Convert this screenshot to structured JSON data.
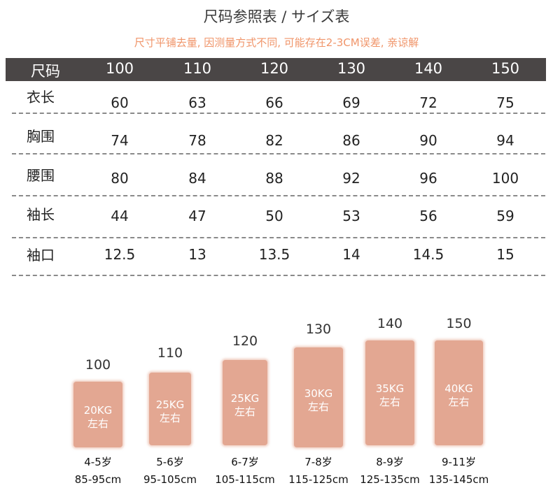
{
  "title": "尺码参照表 / サイズ表",
  "note": "尺寸平铺去量, 因测量方式不同, 可能存在2-3CM误差, 亲谅解",
  "table": {
    "header": [
      "尺码",
      "100",
      "110",
      "120",
      "130",
      "140",
      "150"
    ],
    "rows": [
      {
        "label": "衣长",
        "values": [
          "60",
          "63",
          "66",
          "69",
          "72",
          "75"
        ]
      },
      {
        "label": "胸围",
        "values": [
          "74",
          "78",
          "82",
          "86",
          "90",
          "94"
        ]
      },
      {
        "label": "腰围",
        "values": [
          "80",
          "84",
          "88",
          "92",
          "96",
          "100"
        ]
      },
      {
        "label": "袖长",
        "values": [
          "44",
          "47",
          "50",
          "53",
          "56",
          "59"
        ]
      },
      {
        "label": "袖口",
        "values": [
          "12.5",
          "13",
          "13.5",
          "14",
          "14.5",
          "15"
        ]
      }
    ]
  },
  "guide": [
    {
      "size": "100",
      "weight": "20KG",
      "approx": "左右",
      "age": "4-5岁",
      "height": "85-95cm"
    },
    {
      "size": "110",
      "weight": "25KG",
      "approx": "左右",
      "age": "5-6岁",
      "height": "95-105cm"
    },
    {
      "size": "120",
      "weight": "25KG",
      "approx": "左右",
      "age": "6-7岁",
      "height": "105-115cm"
    },
    {
      "size": "130",
      "weight": "30KG",
      "approx": "左右",
      "age": "7-8岁",
      "height": "115-125cm"
    },
    {
      "size": "140",
      "weight": "35KG",
      "approx": "左右",
      "age": "8-9岁",
      "height": "125-135cm"
    },
    {
      "size": "150",
      "weight": "40KG",
      "approx": "左右",
      "age": "9-11岁",
      "height": "135-145cm"
    }
  ],
  "colors": {
    "header_bg": "#4a4646",
    "note": "#f0956a",
    "block": "#e3a792"
  }
}
